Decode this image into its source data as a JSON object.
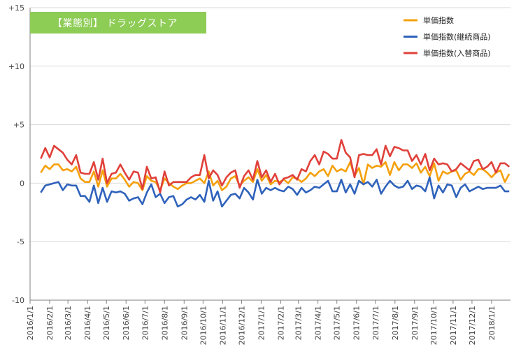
{
  "colors": {
    "tag_bg": "#8dcc55",
    "series": [
      "#f5a00c",
      "#2f62bb",
      "#e0403a"
    ],
    "grid": "#d9d9d9",
    "axis": "#7f7f7f"
  },
  "chart_data": {
    "type": "line",
    "title": "【業態別】 ドラッグストア",
    "xlabel": "",
    "ylabel": "",
    "ylim": [
      -10,
      15
    ],
    "yticks": [
      -10,
      -5,
      0,
      5,
      10,
      15
    ],
    "ytick_labels": [
      "-10",
      "-5",
      "0",
      "+5",
      "+10",
      "+15"
    ],
    "grid": true,
    "legend_position": "top-right",
    "x_start": "2016/1/1",
    "x_end": "2018/1/31",
    "x_tick_labels": [
      "2016/1/1",
      "2016/2/1",
      "2016/3/1",
      "2016/4/1",
      "2016/5/1",
      "2016/6/1",
      "2016/7/1",
      "2016/8/1",
      "2016/9/1",
      "2016/10/1",
      "2016/11/1",
      "2016/12/1",
      "2017/1/1",
      "2017/2/1",
      "2017/3/1",
      "2017/4/1",
      "2017/5/1",
      "2017/6/1",
      "2017/7/1",
      "2017/8/1",
      "2017/9/1",
      "2017/10/1",
      "2017/11/1",
      "2017/12/1",
      "2018/1/1"
    ],
    "x_start_point": "2016/1/18",
    "interval_days": 7,
    "series": [
      {
        "name": "単価指数",
        "values": [
          0.9,
          1.5,
          1.2,
          1.6,
          1.6,
          1.1,
          1.2,
          1.0,
          1.4,
          0.4,
          0.1,
          0.1,
          1.0,
          -0.3,
          1.1,
          -0.3,
          0.4,
          0.4,
          0.8,
          0.3,
          -0.3,
          0.1,
          0.0,
          -0.6,
          0.6,
          0.2,
          0.1,
          -0.6,
          0.4,
          0.0,
          -0.3,
          -0.5,
          -0.2,
          0.0,
          0.0,
          0.2,
          0.4,
          0.0,
          1.0,
          -0.2,
          0.2,
          -0.6,
          -0.3,
          0.4,
          0.6,
          -0.2,
          0.2,
          0.5,
          0.1,
          1.2,
          0.2,
          0.7,
          -0.1,
          0.2,
          0.1,
          0.3,
          0.0,
          0.5,
          0.4,
          0.1,
          0.4,
          0.9,
          0.6,
          1.0,
          1.2,
          0.6,
          1.5,
          1.0,
          1.2,
          1.0,
          1.8,
          0.6,
          1.3,
          -0.1,
          1.6,
          1.3,
          1.5,
          1.4,
          1.8,
          0.7,
          1.8,
          1.1,
          1.6,
          1.6,
          1.3,
          1.7,
          0.9,
          1.4,
          0.6,
          1.7,
          0.2,
          1.0,
          0.8,
          1.0,
          1.1,
          0.3,
          0.8,
          1.0,
          0.7,
          1.2,
          1.2,
          0.9,
          0.5,
          0.9,
          1.1,
          0.1,
          0.8
        ]
      },
      {
        "name": "単価指数(継続商品)",
        "values": [
          -0.8,
          -0.2,
          -0.1,
          0.0,
          0.1,
          -0.6,
          -0.1,
          -0.2,
          -0.2,
          -1.1,
          -1.1,
          -1.6,
          -0.2,
          -1.7,
          -0.4,
          -1.6,
          -0.7,
          -0.8,
          -0.7,
          -0.9,
          -1.5,
          -1.3,
          -1.2,
          -1.8,
          -0.8,
          -0.1,
          -1.2,
          -0.9,
          -1.7,
          -1.2,
          -1.1,
          -2.0,
          -1.8,
          -1.4,
          -1.2,
          -1.4,
          -1.0,
          -1.6,
          0.2,
          -1.5,
          -0.7,
          -2.0,
          -1.5,
          -1.0,
          -0.9,
          -1.3,
          -0.4,
          -0.8,
          -1.4,
          0.3,
          -0.9,
          -0.4,
          -0.6,
          -0.4,
          -0.6,
          -0.7,
          -0.3,
          -0.5,
          -1.0,
          -0.4,
          -0.8,
          -0.6,
          -0.3,
          -0.4,
          -0.1,
          0.2,
          -0.7,
          -0.7,
          0.3,
          -0.8,
          -0.1,
          -0.9,
          0.2,
          -0.1,
          0.1,
          -0.3,
          0.3,
          -0.9,
          -0.3,
          0.2,
          -0.2,
          -0.4,
          -0.3,
          0.2,
          -0.5,
          -0.2,
          -0.3,
          -0.7,
          0.5,
          -1.3,
          -0.2,
          -0.8,
          -0.1,
          -0.2,
          -1.2,
          -0.4,
          -0.1,
          -0.7,
          -0.5,
          -0.3,
          -0.5,
          -0.4,
          -0.4,
          -0.4,
          -0.2,
          -0.7,
          -0.7
        ]
      },
      {
        "name": "単価指数(入替商品)",
        "values": [
          2.1,
          3.0,
          2.2,
          3.2,
          2.9,
          2.6,
          2.0,
          1.6,
          2.4,
          0.9,
          0.8,
          0.8,
          1.8,
          0.3,
          2.1,
          0.0,
          0.8,
          0.9,
          1.6,
          0.9,
          0.3,
          1.0,
          0.9,
          -0.5,
          1.4,
          0.4,
          0.5,
          -0.8,
          1.0,
          -0.2,
          0.1,
          0.1,
          0.1,
          0.1,
          0.5,
          0.7,
          0.7,
          2.4,
          0.4,
          1.1,
          0.7,
          -0.2,
          0.5,
          0.9,
          1.1,
          -0.4,
          0.6,
          1.1,
          0.3,
          1.9,
          0.5,
          1.1,
          0.1,
          0.8,
          -0.1,
          0.4,
          0.5,
          0.7,
          0.3,
          1.2,
          1.0,
          1.9,
          2.4,
          1.6,
          2.7,
          2.5,
          2.1,
          2.1,
          3.7,
          2.6,
          2.2,
          0.5,
          2.4,
          2.5,
          2.4,
          2.4,
          2.9,
          1.6,
          3.2,
          2.3,
          3.1,
          3.0,
          2.8,
          2.8,
          1.9,
          2.4,
          1.6,
          2.5,
          1.1,
          2.1,
          1.6,
          1.7,
          1.6,
          1.0,
          1.2,
          1.7,
          1.4,
          1.1,
          1.9,
          2.0,
          1.2,
          1.4,
          1.8,
          0.9,
          1.7,
          1.7,
          1.4
        ]
      }
    ]
  }
}
